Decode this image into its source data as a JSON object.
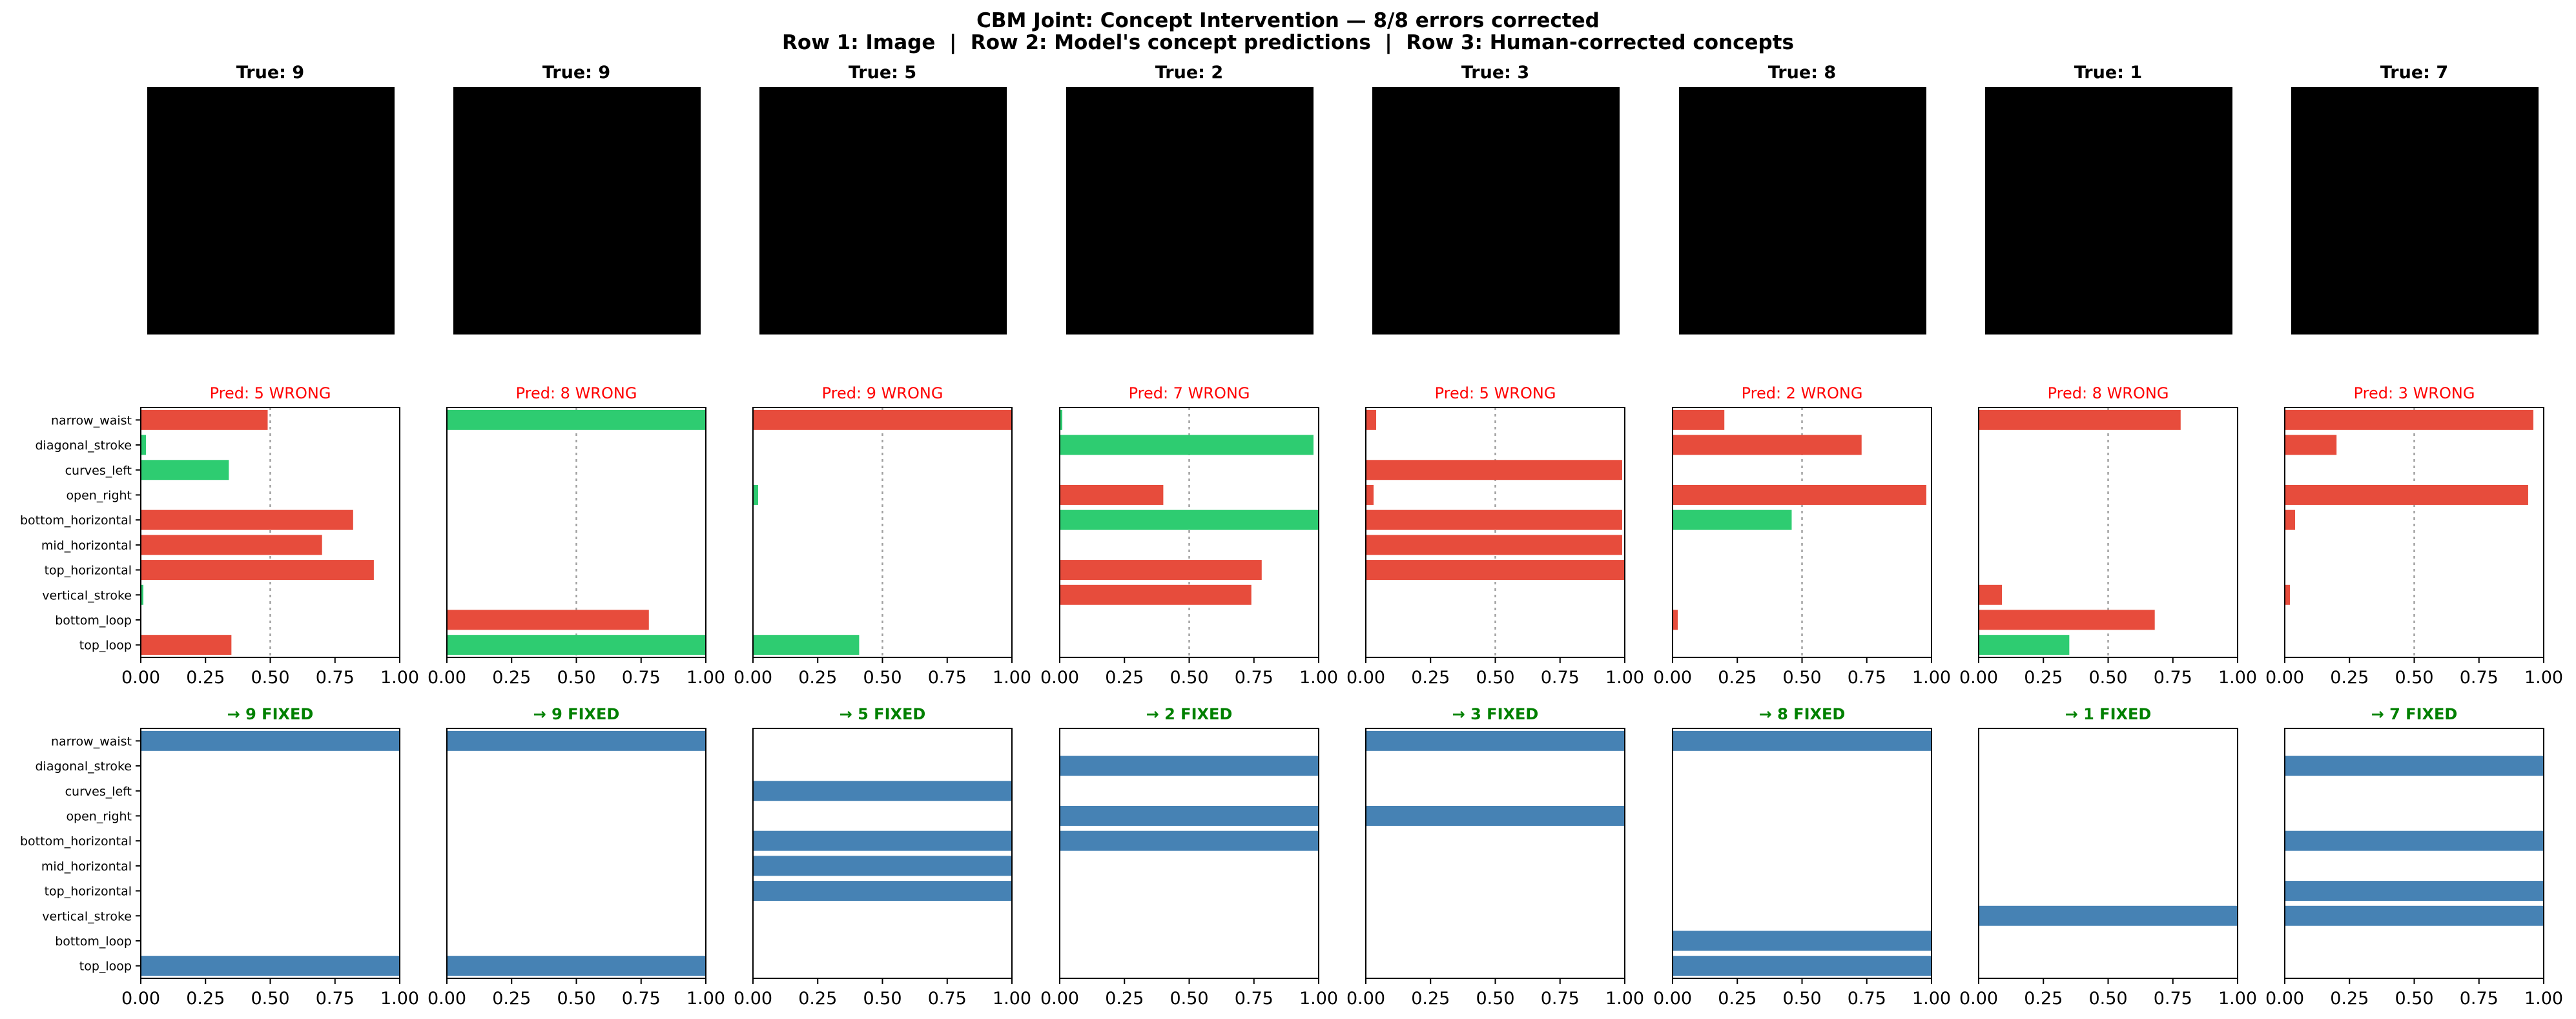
{
  "figure": {
    "title_line1": "CBM Joint: Concept Intervention — 8/8 errors corrected",
    "title_line2": "Row 1: Image  |  Row 2: Model's concept predictions  |  Row 3: Human-corrected concepts"
  },
  "colors": {
    "active_concept": "#2ecc71",
    "other_concept": "#e74c3c",
    "corrected_concept": "#4682b4",
    "wrong_title": "#ff0000",
    "fixed_title": "#008000",
    "threshold_line": "#a0a0a0"
  },
  "concepts": [
    "narrow_waist",
    "diagonal_stroke",
    "curves_left",
    "open_right",
    "bottom_horizontal",
    "mid_horizontal",
    "top_horizontal",
    "vertical_stroke",
    "bottom_loop",
    "top_loop"
  ],
  "chart_data": [
    {
      "type": "bar",
      "panel": "row1-images",
      "titles": [
        "True: 9",
        "True: 9",
        "True: 5",
        "True: 2",
        "True: 3",
        "True: 8",
        "True: 1",
        "True: 7"
      ]
    },
    {
      "type": "bar",
      "panel": "row2-model-predictions",
      "orientation": "horizontal",
      "xlim": [
        0,
        1
      ],
      "xticks": [
        "0.00",
        "0.25",
        "0.50",
        "0.75",
        "1.00"
      ],
      "threshold": 0.5,
      "categories": [
        "narrow_waist",
        "diagonal_stroke",
        "curves_left",
        "open_right",
        "bottom_horizontal",
        "mid_horizontal",
        "top_horizontal",
        "vertical_stroke",
        "bottom_loop",
        "top_loop"
      ],
      "subplots": [
        {
          "title": "Pred: 5 WRONG",
          "values": [
            0.49,
            0.02,
            0.34,
            0.0,
            0.82,
            0.7,
            0.9,
            0.01,
            0.0,
            0.35
          ],
          "active": [
            false,
            true,
            true,
            false,
            false,
            false,
            false,
            true,
            false,
            false
          ]
        },
        {
          "title": "Pred: 8 WRONG",
          "values": [
            1.0,
            0.0,
            0.0,
            0.0,
            0.0,
            0.0,
            0.0,
            0.0,
            0.78,
            1.0
          ],
          "active": [
            true,
            false,
            false,
            false,
            false,
            false,
            false,
            false,
            false,
            true
          ]
        },
        {
          "title": "Pred: 9 WRONG",
          "values": [
            1.0,
            0.0,
            0.0,
            0.02,
            0.0,
            0.0,
            0.0,
            0.0,
            0.0,
            0.41
          ],
          "active": [
            false,
            false,
            false,
            true,
            false,
            false,
            false,
            false,
            false,
            true
          ]
        },
        {
          "title": "Pred: 7 WRONG",
          "values": [
            0.01,
            0.98,
            0.0,
            0.4,
            1.0,
            0.0,
            0.78,
            0.74,
            0.0,
            0.0
          ],
          "active": [
            true,
            true,
            false,
            false,
            true,
            false,
            false,
            false,
            false,
            false
          ]
        },
        {
          "title": "Pred: 5 WRONG",
          "values": [
            0.04,
            0.0,
            0.99,
            0.03,
            0.99,
            0.99,
            1.0,
            0.0,
            0.0,
            0.0
          ],
          "active": [
            false,
            false,
            false,
            false,
            false,
            false,
            false,
            false,
            false,
            false
          ]
        },
        {
          "title": "Pred: 2 WRONG",
          "values": [
            0.2,
            0.73,
            0.0,
            0.98,
            0.46,
            0.0,
            0.0,
            0.0,
            0.02,
            0.0
          ],
          "active": [
            false,
            false,
            false,
            false,
            true,
            false,
            false,
            false,
            false,
            false
          ]
        },
        {
          "title": "Pred: 8 WRONG",
          "values": [
            0.78,
            0.0,
            0.0,
            0.0,
            0.0,
            0.0,
            0.0,
            0.09,
            0.68,
            0.35
          ],
          "active": [
            false,
            false,
            false,
            false,
            false,
            false,
            false,
            false,
            false,
            true
          ]
        },
        {
          "title": "Pred: 3 WRONG",
          "values": [
            0.96,
            0.2,
            0.0,
            0.94,
            0.04,
            0.0,
            0.0,
            0.02,
            0.0,
            0.0
          ],
          "active": [
            false,
            false,
            false,
            false,
            false,
            false,
            false,
            false,
            false,
            false
          ]
        }
      ]
    },
    {
      "type": "bar",
      "panel": "row3-human-corrected",
      "orientation": "horizontal",
      "xlim": [
        0,
        1
      ],
      "xticks": [
        "0.00",
        "0.25",
        "0.50",
        "0.75",
        "1.00"
      ],
      "categories": [
        "narrow_waist",
        "diagonal_stroke",
        "curves_left",
        "open_right",
        "bottom_horizontal",
        "mid_horizontal",
        "top_horizontal",
        "vertical_stroke",
        "bottom_loop",
        "top_loop"
      ],
      "subplots": [
        {
          "title": "→ 9 FIXED",
          "values": [
            1,
            0,
            0,
            0,
            0,
            0,
            0,
            0,
            0,
            1
          ]
        },
        {
          "title": "→ 9 FIXED",
          "values": [
            1,
            0,
            0,
            0,
            0,
            0,
            0,
            0,
            0,
            1
          ]
        },
        {
          "title": "→ 5 FIXED",
          "values": [
            0,
            0,
            1,
            0,
            1,
            1,
            1,
            0,
            0,
            0
          ]
        },
        {
          "title": "→ 2 FIXED",
          "values": [
            0,
            1,
            0,
            1,
            1,
            0,
            0,
            0,
            0,
            0
          ]
        },
        {
          "title": "→ 3 FIXED",
          "values": [
            1,
            0,
            0,
            1,
            0,
            0,
            0,
            0,
            0,
            0
          ]
        },
        {
          "title": "→ 8 FIXED",
          "values": [
            1,
            0,
            0,
            0,
            0,
            0,
            0,
            0,
            1,
            1
          ]
        },
        {
          "title": "→ 1 FIXED",
          "values": [
            0,
            0,
            0,
            0,
            0,
            0,
            0,
            1,
            0,
            0
          ]
        },
        {
          "title": "→ 7 FIXED",
          "values": [
            0,
            1,
            0,
            0,
            1,
            0,
            1,
            1,
            0,
            0
          ]
        }
      ]
    }
  ]
}
